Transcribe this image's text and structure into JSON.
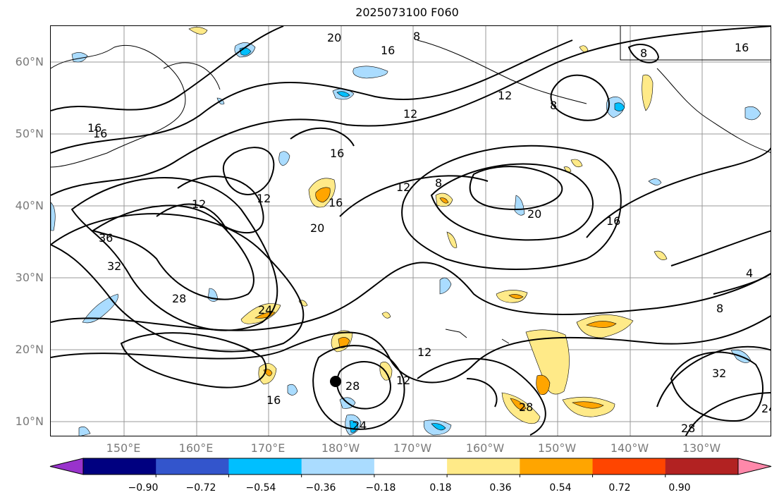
{
  "title": "2025073100 F060",
  "lat_labels": [
    {
      "text": "60°N"
    },
    {
      "text": "50°N"
    },
    {
      "text": "40°N"
    },
    {
      "text": "30°N"
    },
    {
      "text": "20°N"
    },
    {
      "text": "10°N"
    }
  ],
  "lon_labels": [
    {
      "text": "150°E"
    },
    {
      "text": "160°E"
    },
    {
      "text": "170°E"
    },
    {
      "text": "180°W"
    },
    {
      "text": "170°W"
    },
    {
      "text": "160°W"
    },
    {
      "text": "150°W"
    },
    {
      "text": "140°W"
    },
    {
      "text": "130°W"
    }
  ],
  "contour_labels": [
    "20",
    "8",
    "16",
    "12",
    "8",
    "16",
    "16",
    "12",
    "8",
    "16",
    "12",
    "16",
    "12",
    "8",
    "20",
    "16",
    "36",
    "32",
    "12",
    "16",
    "20",
    "28",
    "24",
    "16",
    "28",
    "12",
    "12",
    "28",
    "8",
    "4",
    "32",
    "24",
    "28",
    "24"
  ],
  "colorbar": {
    "ticks": [
      "−0.90",
      "−0.72",
      "−0.54",
      "−0.36",
      "−0.18",
      "0.18",
      "0.36",
      "0.54",
      "0.72",
      "0.90"
    ],
    "colors": [
      "#9933cc",
      "#000080",
      "#3355cc",
      "#00bfff",
      "#aadcff",
      "#ffffff",
      "#ffea88",
      "#ffa500",
      "#ff4500",
      "#b22222",
      "#ff88aa"
    ]
  },
  "map_colors": {
    "neg_light": "#aadcff",
    "neg_mid": "#00bfff",
    "pos_light": "#ffea88",
    "pos_mid": "#ffa500",
    "contour": "#000000",
    "grid": "#999999",
    "marker": "#000000"
  }
}
